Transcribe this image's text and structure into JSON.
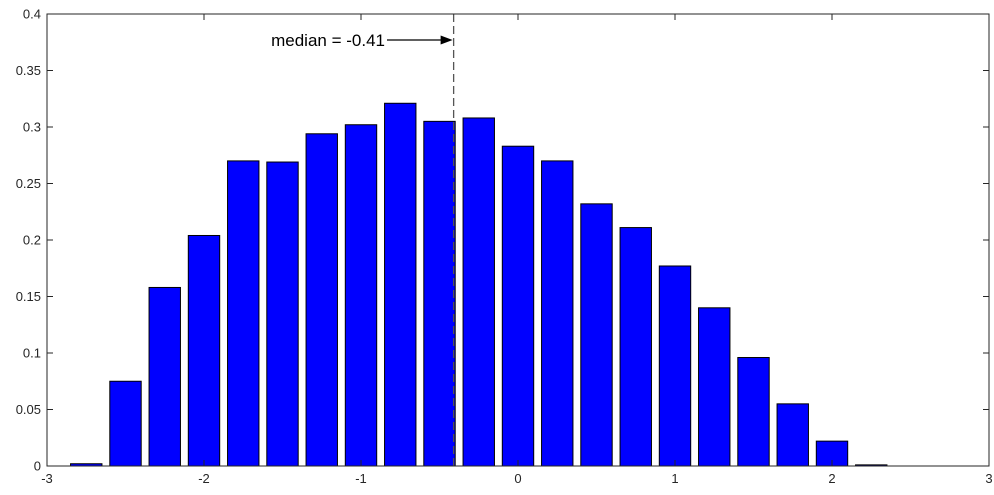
{
  "chart_data": {
    "type": "bar",
    "title": "",
    "xlabel": "",
    "ylabel": "",
    "xlim": [
      -3,
      3
    ],
    "ylim": [
      0,
      0.4
    ],
    "bar_width": 0.2,
    "x": [
      -2.75,
      -2.5,
      -2.25,
      -2.0,
      -1.75,
      -1.5,
      -1.25,
      -1.0,
      -0.75,
      -0.5,
      -0.25,
      0.0,
      0.25,
      0.5,
      0.75,
      1.0,
      1.25,
      1.5,
      1.75,
      2.0,
      2.25
    ],
    "values": [
      0.002,
      0.075,
      0.158,
      0.204,
      0.27,
      0.269,
      0.294,
      0.302,
      0.321,
      0.305,
      0.308,
      0.283,
      0.27,
      0.232,
      0.211,
      0.177,
      0.14,
      0.096,
      0.055,
      0.022,
      0.001
    ],
    "xticks": [
      "-3",
      "-2",
      "-1",
      "0",
      "1",
      "2",
      "3"
    ],
    "yticks": [
      "0",
      "0.05",
      "0.1",
      "0.15",
      "0.2",
      "0.25",
      "0.3",
      "0.35",
      "0.4"
    ],
    "grid": false,
    "colors": {
      "bar": "#0000ff",
      "bar_edge": "#000000",
      "axis": "#262626",
      "median_line": "#555555"
    },
    "median": {
      "value": -0.41,
      "label": "median = -0.41"
    }
  }
}
